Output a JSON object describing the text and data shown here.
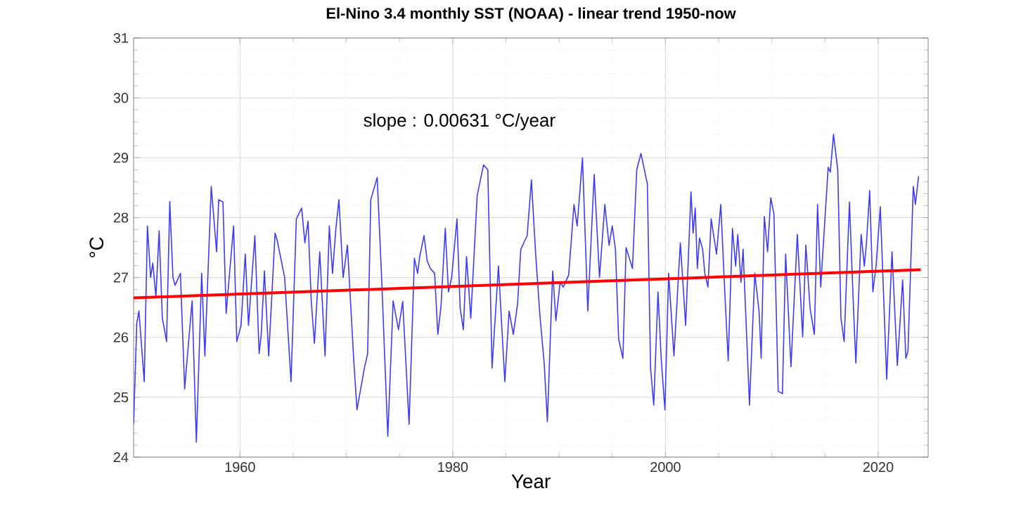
{
  "chart_data": {
    "type": "line",
    "title": "El-Nino 3.4 monthly SST (NOAA) - linear trend 1950-now",
    "xlabel": "Year",
    "ylabel": "°C",
    "xlim": [
      1950,
      2024.7
    ],
    "xticks": [
      1960,
      1980,
      2000,
      2020
    ],
    "ylim": [
      24,
      31
    ],
    "yticks": [
      24,
      25,
      26,
      27,
      28,
      29,
      30,
      31
    ],
    "grid": true,
    "annotations": [
      "slope : 0.00631 °C/year"
    ],
    "series": [
      {
        "color": "#3b3bff",
        "x": [
          1950.0,
          1950.3,
          1950.5,
          1951.0,
          1951.3,
          1951.6,
          1951.8,
          1952.1,
          1952.4,
          1952.7,
          1953.1,
          1953.4,
          1953.7,
          1953.9,
          1954.4,
          1954.8,
          1955.0,
          1955.5,
          1955.9,
          1956.4,
          1956.7,
          1957.3,
          1957.8,
          1958.0,
          1958.4,
          1958.7,
          1959.4,
          1959.7,
          1960.1,
          1960.5,
          1960.8,
          1961.4,
          1961.8,
          1962.0,
          1962.3,
          1962.7,
          1963.3,
          1963.5,
          1964.2,
          1964.8,
          1965.3,
          1965.8,
          1966.1,
          1966.4,
          1966.7,
          1967.0,
          1967.5,
          1968.0,
          1968.4,
          1968.7,
          1969.0,
          1969.3,
          1969.7,
          1970.1,
          1970.7,
          1971.0,
          1971.7,
          1972.0,
          1972.3,
          1972.9,
          1973.3,
          1973.9,
          1974.4,
          1974.9,
          1975.3,
          1975.9,
          1976.4,
          1976.7,
          1976.9,
          1977.3,
          1977.6,
          1977.9,
          1978.3,
          1978.6,
          1978.9,
          1979.3,
          1979.6,
          1979.9,
          1980.4,
          1980.7,
          1981.0,
          1981.3,
          1981.7,
          1982.3,
          1982.9,
          1983.3,
          1983.7,
          1984.3,
          1984.9,
          1985.3,
          1985.7,
          1986.1,
          1986.4,
          1987.0,
          1987.4,
          1987.8,
          1988.2,
          1988.6,
          1988.9,
          1989.4,
          1989.7,
          1990.1,
          1990.4,
          1990.9,
          1991.4,
          1991.7,
          1992.2,
          1992.7,
          1993.3,
          1993.8,
          1994.3,
          1994.7,
          1995.0,
          1995.3,
          1995.6,
          1996.0,
          1996.3,
          1996.9,
          1997.3,
          1997.7,
          1998.3,
          1998.6,
          1998.9,
          1999.3,
          1999.6,
          1999.95,
          2000.3,
          2000.8,
          2001.4,
          2001.9,
          2002.4,
          2002.6,
          2002.8,
          2003.0,
          2003.2,
          2003.5,
          2003.7,
          2004.0,
          2004.3,
          2004.8,
          2005.2,
          2005.6,
          2005.9,
          2006.3,
          2006.6,
          2006.8,
          2007.1,
          2007.3,
          2007.9,
          2008.4,
          2008.8,
          2009.0,
          2009.3,
          2009.6,
          2009.9,
          2010.2,
          2010.6,
          2011.0,
          2011.3,
          2011.8,
          2012.4,
          2012.9,
          2013.2,
          2013.6,
          2014.0,
          2014.3,
          2014.6,
          2014.8,
          2015.3,
          2015.5,
          2015.8,
          2016.2,
          2016.5,
          2016.8,
          2017.3,
          2017.7,
          2017.9,
          2018.4,
          2018.7,
          2018.9,
          2019.2,
          2019.5,
          2019.8,
          2020.2,
          2020.8,
          2021.3,
          2021.8,
          2022.3,
          2022.6,
          2022.8,
          2023.3,
          2023.5,
          2023.8
        ],
        "values": [
          24.55,
          26.24,
          26.44,
          25.26,
          27.86,
          27.0,
          27.24,
          26.68,
          27.78,
          26.32,
          25.93,
          28.27,
          27.0,
          26.87,
          27.07,
          25.14,
          25.57,
          26.61,
          24.25,
          27.07,
          25.69,
          28.52,
          27.43,
          28.3,
          28.26,
          26.4,
          27.86,
          25.93,
          26.2,
          27.39,
          26.2,
          27.7,
          25.73,
          26.05,
          27.11,
          25.69,
          27.74,
          27.62,
          27.0,
          25.26,
          27.98,
          28.16,
          27.58,
          27.94,
          26.61,
          25.9,
          27.43,
          25.69,
          27.86,
          27.07,
          27.78,
          28.3,
          27.0,
          27.54,
          25.61,
          24.79,
          25.49,
          25.73,
          28.3,
          28.67,
          27.07,
          24.35,
          26.61,
          26.13,
          26.6,
          24.55,
          27.32,
          27.07,
          27.35,
          27.7,
          27.28,
          27.15,
          27.07,
          26.05,
          26.52,
          27.82,
          26.76,
          27.0,
          27.98,
          26.49,
          26.13,
          27.35,
          26.32,
          28.37,
          28.88,
          28.8,
          25.49,
          27.19,
          25.26,
          26.44,
          26.05,
          26.56,
          27.47,
          27.7,
          28.63,
          27.39,
          26.36,
          25.57,
          24.59,
          27.11,
          26.28,
          26.92,
          26.84,
          27.04,
          28.22,
          27.86,
          29.0,
          26.44,
          28.72,
          27.0,
          28.22,
          27.54,
          27.86,
          27.47,
          25.97,
          25.65,
          27.5,
          27.15,
          28.8,
          29.07,
          28.56,
          25.49,
          24.87,
          26.76,
          25.65,
          24.79,
          27.07,
          25.69,
          27.58,
          26.2,
          28.43,
          27.74,
          28.16,
          27.15,
          27.66,
          27.47,
          27.07,
          26.84,
          27.98,
          27.39,
          28.22,
          26.68,
          25.61,
          27.82,
          27.19,
          27.72,
          26.92,
          27.47,
          24.87,
          27.07,
          26.44,
          25.65,
          28.02,
          27.43,
          28.33,
          28.06,
          25.1,
          25.06,
          27.39,
          25.51,
          27.72,
          26.01,
          27.54,
          26.48,
          26.05,
          28.22,
          26.84,
          27.43,
          28.84,
          28.76,
          29.39,
          28.8,
          26.32,
          25.93,
          28.26,
          26.4,
          25.57,
          27.72,
          27.19,
          27.58,
          28.45,
          26.76,
          27.19,
          28.18,
          25.3,
          27.43,
          25.53,
          26.96,
          25.65,
          25.77,
          28.52,
          28.22,
          28.69
        ]
      },
      {
        "type": "line",
        "color": "#ff0000",
        "x": [
          1950,
          2024
        ],
        "values": [
          26.66,
          27.13
        ]
      }
    ]
  }
}
